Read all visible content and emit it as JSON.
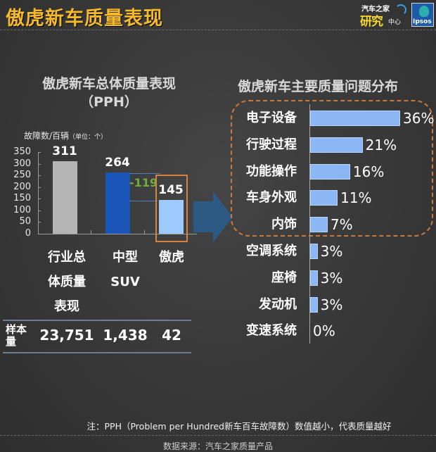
{
  "header": {
    "title": "傲虎新车质量表现",
    "logos": {
      "autohome": {
        "top": "汽车之家",
        "big": "研究",
        "small": "中心"
      },
      "ipsos": "Ipsos"
    }
  },
  "left_chart": {
    "title_line1": "傲虎新车总体质量表现",
    "title_line2": "（PPH）",
    "unit_label": "故障数/百辆",
    "unit_small": "（单位：个）",
    "diff_label": "-119",
    "categories": [
      {
        "lines": [
          "行业总",
          "体质量",
          "表现"
        ]
      },
      {
        "lines": [
          "中型",
          "SUV"
        ]
      },
      {
        "lines": [
          "傲虎"
        ]
      }
    ],
    "sample": {
      "label_line1": "样本",
      "label_line2": "量",
      "values": [
        "23,751",
        "1,438",
        "42"
      ]
    }
  },
  "right_chart": {
    "title": "傲虎新车主要质量问题分布"
  },
  "footer": {
    "note": "注：PPH（Problem per Hundred新车百车故障数）数值越小，代表质量越好",
    "source": "数据来源：汽车之家质量产品"
  },
  "colors": {
    "title": "#f6b92a",
    "industry_bar": "#b4b4b4",
    "midsuv_bar": "#1b55b8",
    "outback_bar": "#9ecbff",
    "hbar": "#8bb8f5",
    "highlight": "#d8823f",
    "diff": "#6fae3a"
  },
  "chart_data": [
    {
      "type": "bar",
      "title": "傲虎新车总体质量表现（PPH）",
      "ylabel": "故障数/百辆（单位：个）",
      "xlabel": "",
      "categories": [
        "行业总体质量表现",
        "中型SUV",
        "傲虎"
      ],
      "values": [
        311,
        264,
        145
      ],
      "value_labels": [
        "311",
        "264",
        "145"
      ],
      "yticks": [
        "0",
        "50",
        "100",
        "150",
        "200",
        "250",
        "300",
        "350"
      ],
      "ylim": [
        0,
        350
      ],
      "annotations": [
        {
          "text": "-119",
          "between": [
            "中型SUV",
            "傲虎"
          ]
        }
      ],
      "sample_sizes": [
        "23,751",
        "1,438",
        "42"
      ],
      "grid": false,
      "legend": null
    },
    {
      "type": "bar",
      "orientation": "horizontal",
      "title": "傲虎新车主要质量问题分布",
      "categories": [
        "电子设备",
        "行驶过程",
        "功能操作",
        "车身外观",
        "内饰",
        "空调系统",
        "座椅",
        "发动机",
        "变速系统"
      ],
      "values": [
        36,
        21,
        16,
        11,
        7,
        3,
        3,
        3,
        0
      ],
      "value_labels": [
        "36%",
        "21%",
        "16%",
        "11%",
        "7%",
        "3%",
        "3%",
        "3%",
        "0%"
      ],
      "unit": "%",
      "highlighted_group": [
        "电子设备",
        "行驶过程",
        "功能操作",
        "车身外观",
        "内饰"
      ],
      "grid": false,
      "legend": null
    }
  ]
}
